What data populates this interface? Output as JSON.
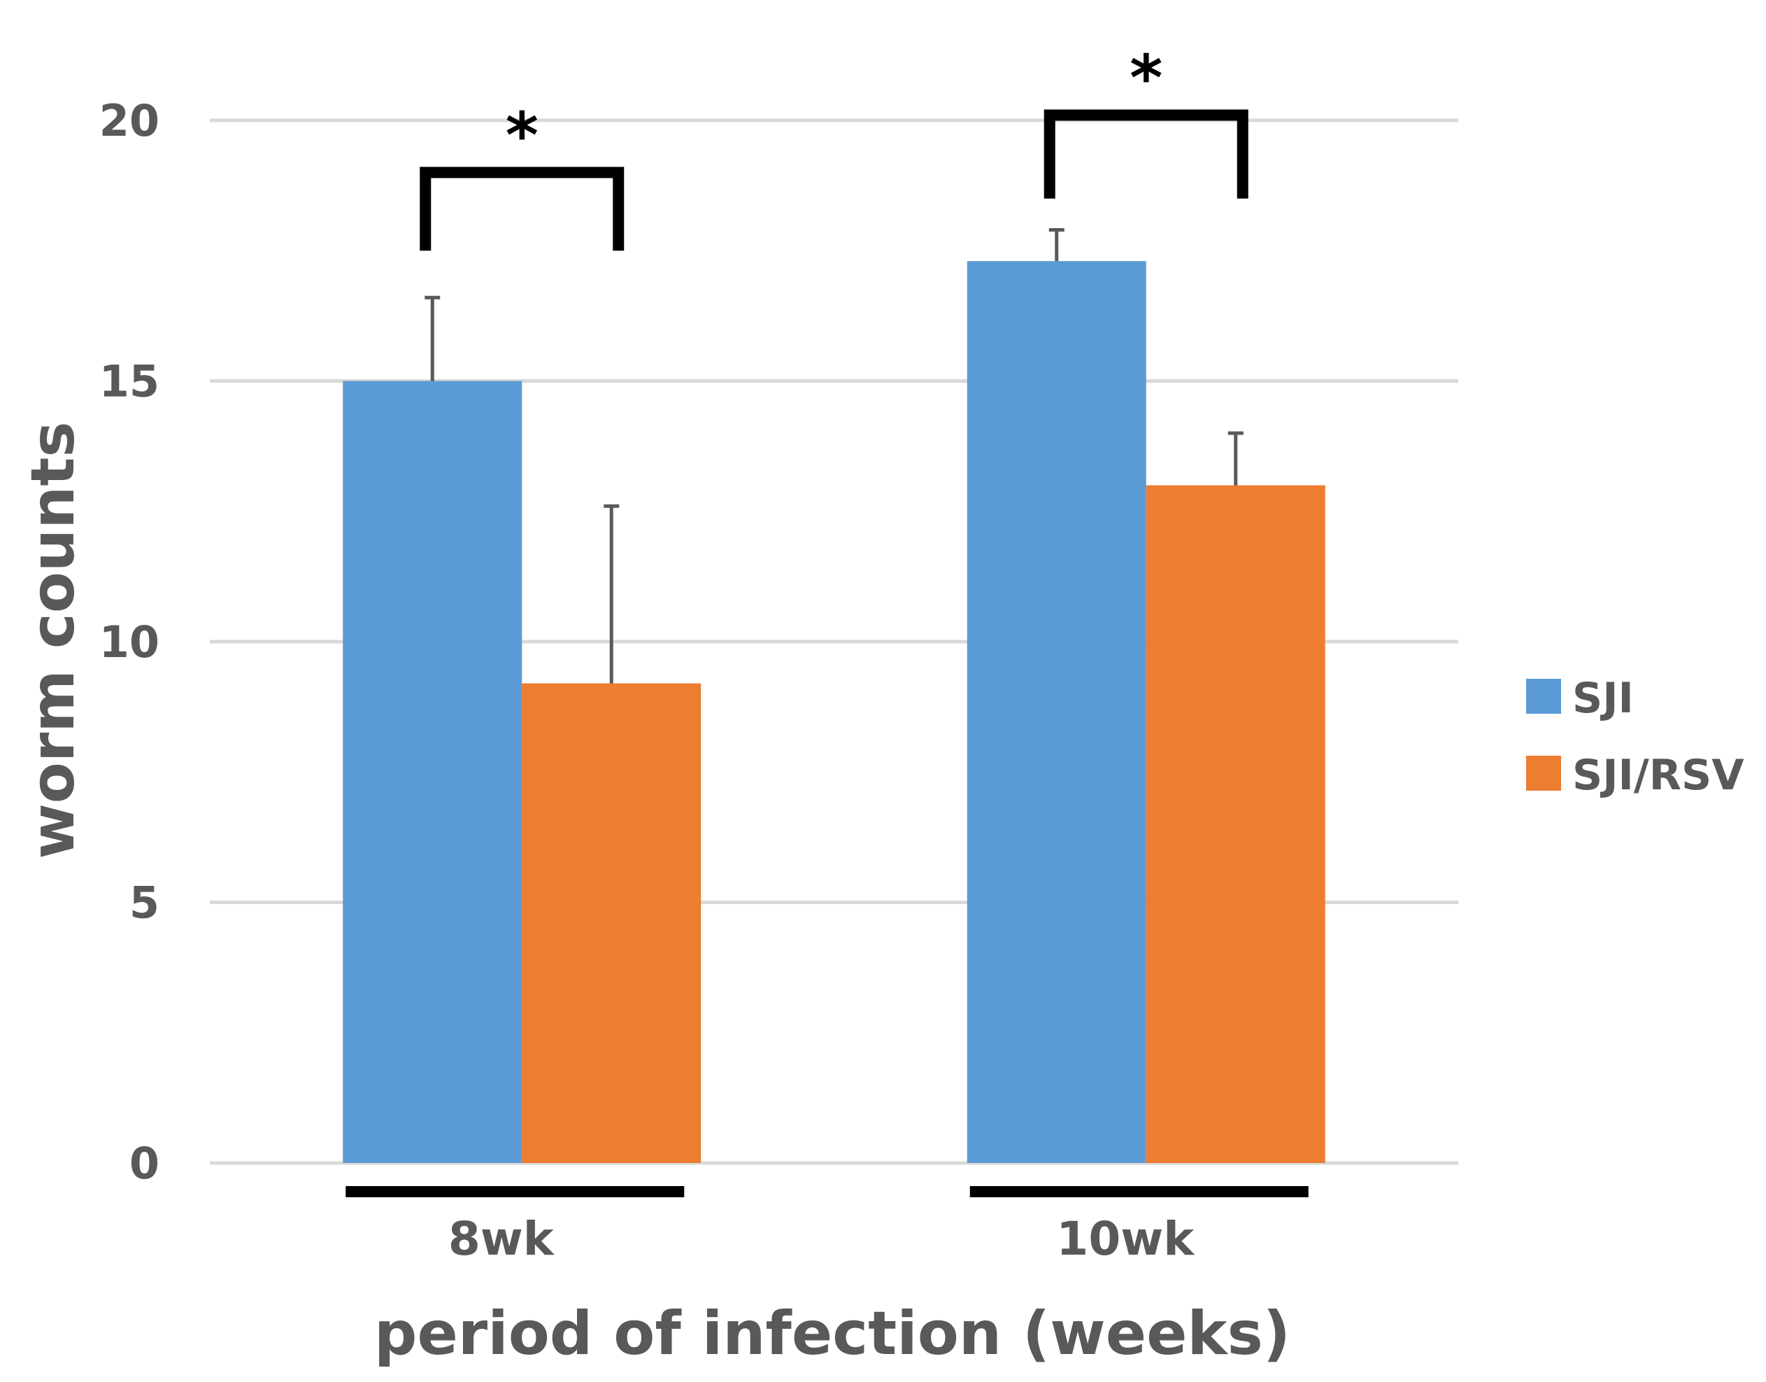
{
  "chart_data": {
    "type": "bar",
    "title": "",
    "xlabel": "period of infection (weeks)",
    "ylabel": "worm counts",
    "ylim": [
      0,
      20
    ],
    "yticks": [
      0,
      5,
      10,
      15,
      20
    ],
    "grid": true,
    "categories": [
      "8wk",
      "10wk"
    ],
    "series": [
      {
        "name": "SJI",
        "color": "#5B9BD5",
        "values": [
          15,
          17.3
        ],
        "errors": [
          1.6,
          0.6
        ]
      },
      {
        "name": "SJI/RSV",
        "color": "#ED7D31",
        "values": [
          9.2,
          13
        ],
        "errors": [
          3.4,
          1
        ]
      }
    ],
    "legend_position": "right",
    "annotations": [
      {
        "label": "*",
        "category": "8wk",
        "left_top": 17.5,
        "right_top": 17.5,
        "bar_top": 19
      },
      {
        "label": "*",
        "category": "10wk",
        "left_top": 18.5,
        "right_top": 18.5,
        "bar_top": 20.1
      }
    ]
  }
}
